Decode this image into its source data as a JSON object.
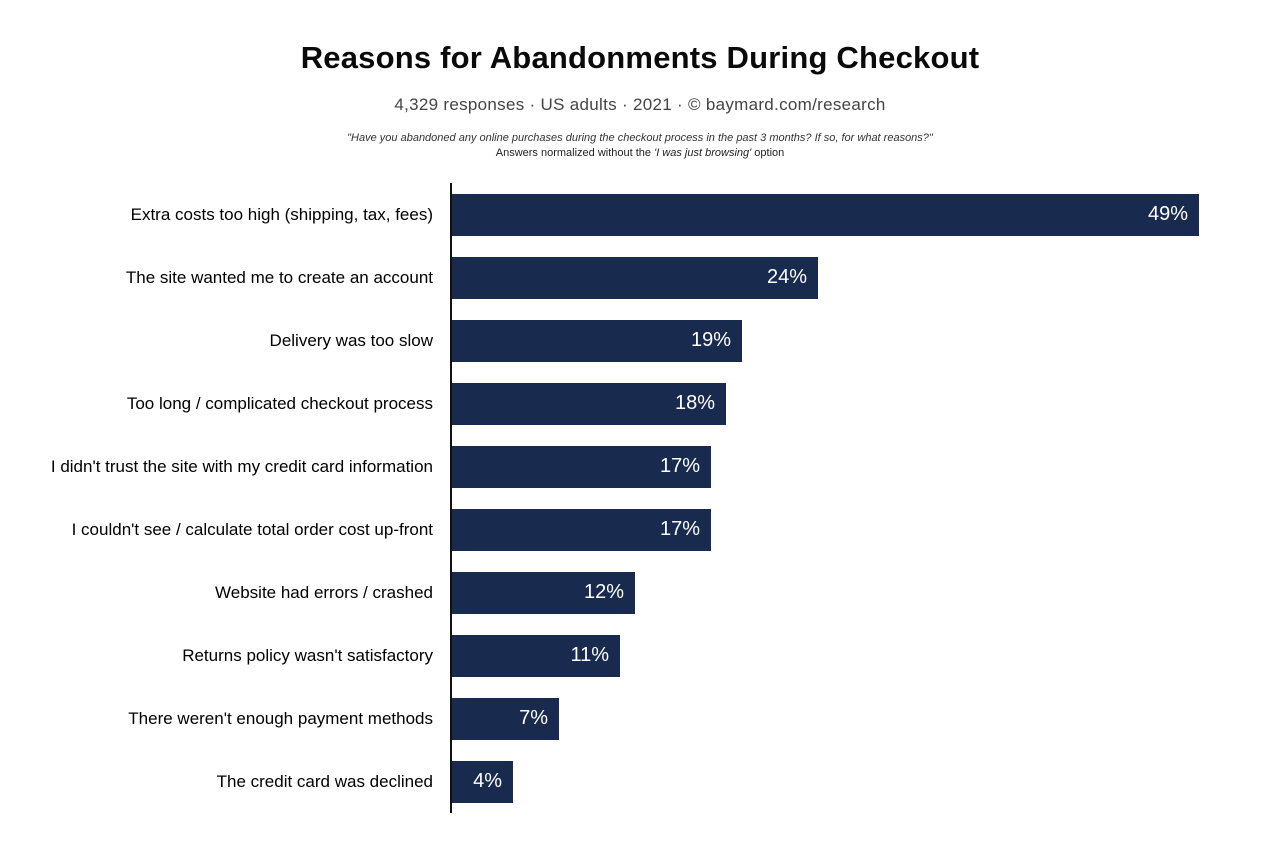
{
  "header": {
    "title": "Reasons for Abandonments During Checkout",
    "subtitle": "4,329 responses  ·  US adults  ·  2021  ·  ©  baymard.com/research",
    "note_line1": "\"Have you abandoned any online purchases during the checkout process in the past 3 months? If so, for what reasons?\"",
    "note_line2_prefix": "Answers normalized without the ",
    "note_line2_italic": "'I was just browsing'",
    "note_line2_suffix": " option"
  },
  "chart_data": {
    "type": "bar",
    "orientation": "horizontal",
    "title": "Reasons for Abandonments During Checkout",
    "subtitle": "4,329 responses · US adults · 2021 · © baymard.com/research",
    "categories": [
      "Extra costs too high (shipping, tax, fees)",
      "The site wanted me to create an account",
      "Delivery was too slow",
      "Too long / complicated checkout process",
      "I didn't trust the site with my credit card information",
      "I couldn't see / calculate total order cost up-front",
      "Website had errors / crashed",
      "Returns policy wasn't satisfactory",
      "There weren't enough payment methods",
      "The credit card was declined"
    ],
    "values": [
      49,
      24,
      19,
      18,
      17,
      17,
      12,
      11,
      7,
      4
    ],
    "value_suffix": "%",
    "xlim": [
      0,
      49
    ],
    "grid": false,
    "legend": false,
    "axis_line": "vertical-left-black",
    "bar_color": "#182a4e",
    "value_label_color": "#ffffff",
    "label_color": "#000000"
  }
}
